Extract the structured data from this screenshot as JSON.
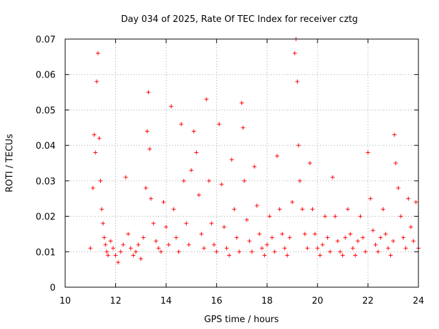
{
  "chart_data": {
    "type": "scatter",
    "title": "Day 034 of 2025, Rate Of TEC Index for receiver cztg",
    "xlabel": "GPS time / hours",
    "ylabel": "ROTI / TECUs",
    "xlim": [
      10,
      24
    ],
    "ylim": [
      0,
      0.07
    ],
    "x_ticks": [
      10,
      12,
      14,
      16,
      18,
      20,
      22,
      24
    ],
    "x_tick_labels": [
      "10",
      "12",
      "14",
      "16",
      "18",
      "20",
      "22",
      "24"
    ],
    "y_ticks": [
      0,
      0.01,
      0.02,
      0.03,
      0.04,
      0.05,
      0.06,
      0.07
    ],
    "y_tick_labels": [
      "0",
      "0.01",
      "0.02",
      "0.03",
      "0.04",
      "0.05",
      "0.06",
      "0.07"
    ],
    "grid": true,
    "marker": "+",
    "color": "#ff0000",
    "series": [
      {
        "name": "ROTI",
        "x": [
          11.0,
          11.1,
          11.15,
          11.2,
          11.25,
          11.3,
          11.35,
          11.4,
          11.45,
          11.5,
          11.55,
          11.6,
          11.65,
          11.7,
          11.8,
          11.9,
          12.0,
          12.1,
          12.2,
          12.3,
          12.4,
          12.5,
          12.6,
          12.7,
          12.8,
          12.9,
          13.0,
          13.1,
          13.2,
          13.25,
          13.3,
          13.35,
          13.4,
          13.5,
          13.6,
          13.7,
          13.8,
          13.9,
          14.0,
          14.1,
          14.2,
          14.3,
          14.4,
          14.5,
          14.6,
          14.7,
          14.8,
          14.9,
          15.0,
          15.1,
          15.2,
          15.3,
          15.4,
          15.5,
          15.6,
          15.7,
          15.8,
          15.9,
          16.0,
          16.1,
          16.2,
          16.3,
          16.4,
          16.5,
          16.6,
          16.7,
          16.8,
          16.9,
          17.0,
          17.05,
          17.1,
          17.2,
          17.3,
          17.4,
          17.5,
          17.6,
          17.7,
          17.8,
          17.9,
          18.0,
          18.1,
          18.2,
          18.3,
          18.4,
          18.5,
          18.6,
          18.7,
          18.8,
          18.9,
          19.0,
          19.1,
          19.15,
          19.2,
          19.25,
          19.3,
          19.4,
          19.5,
          19.6,
          19.7,
          19.8,
          19.9,
          20.0,
          20.1,
          20.2,
          20.3,
          20.4,
          20.5,
          20.6,
          20.7,
          20.8,
          20.9,
          21.0,
          21.1,
          21.2,
          21.3,
          21.4,
          21.5,
          21.6,
          21.7,
          21.8,
          21.9,
          22.0,
          22.1,
          22.2,
          22.3,
          22.4,
          22.5,
          22.6,
          22.7,
          22.8,
          22.9,
          23.0,
          23.05,
          23.1,
          23.2,
          23.3,
          23.4,
          23.5,
          23.6,
          23.7,
          23.8,
          23.9,
          24.0
        ],
        "y": [
          0.011,
          0.028,
          0.043,
          0.038,
          0.058,
          0.066,
          0.042,
          0.03,
          0.022,
          0.018,
          0.014,
          0.012,
          0.01,
          0.009,
          0.013,
          0.011,
          0.009,
          0.007,
          0.01,
          0.012,
          0.031,
          0.015,
          0.011,
          0.009,
          0.01,
          0.012,
          0.008,
          0.014,
          0.028,
          0.044,
          0.055,
          0.039,
          0.025,
          0.018,
          0.013,
          0.011,
          0.01,
          0.024,
          0.017,
          0.012,
          0.051,
          0.022,
          0.014,
          0.01,
          0.046,
          0.03,
          0.018,
          0.012,
          0.033,
          0.044,
          0.038,
          0.026,
          0.015,
          0.011,
          0.053,
          0.03,
          0.018,
          0.012,
          0.01,
          0.046,
          0.029,
          0.017,
          0.011,
          0.009,
          0.036,
          0.022,
          0.014,
          0.01,
          0.052,
          0.045,
          0.03,
          0.019,
          0.013,
          0.01,
          0.034,
          0.023,
          0.015,
          0.011,
          0.009,
          0.012,
          0.02,
          0.014,
          0.01,
          0.037,
          0.022,
          0.015,
          0.011,
          0.009,
          0.014,
          0.024,
          0.066,
          0.07,
          0.058,
          0.04,
          0.03,
          0.022,
          0.015,
          0.011,
          0.035,
          0.022,
          0.015,
          0.011,
          0.009,
          0.012,
          0.02,
          0.014,
          0.01,
          0.031,
          0.02,
          0.013,
          0.01,
          0.009,
          0.014,
          0.022,
          0.015,
          0.011,
          0.009,
          0.013,
          0.02,
          0.014,
          0.01,
          0.038,
          0.025,
          0.016,
          0.012,
          0.01,
          0.014,
          0.022,
          0.015,
          0.011,
          0.009,
          0.013,
          0.043,
          0.035,
          0.028,
          0.02,
          0.014,
          0.011,
          0.025,
          0.017,
          0.013,
          0.024,
          0.011
        ]
      }
    ]
  }
}
